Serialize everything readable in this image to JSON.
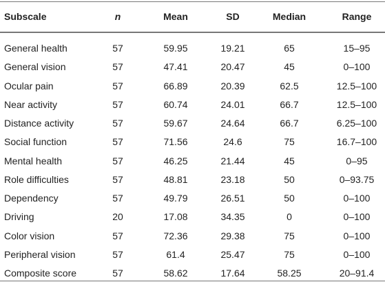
{
  "table": {
    "header": [
      "Subscale",
      "n",
      "Mean",
      "SD",
      "Median",
      "Range"
    ],
    "rows": [
      [
        "General health",
        57,
        59.95,
        19.21,
        65,
        "15–95"
      ],
      [
        "General vision",
        57,
        47.41,
        20.47,
        45,
        "0–100"
      ],
      [
        "Ocular pain",
        57,
        66.89,
        20.39,
        62.5,
        "12.5–100"
      ],
      [
        "Near activity",
        57,
        60.74,
        24.01,
        66.7,
        "12.5–100"
      ],
      [
        "Distance activity",
        57,
        59.67,
        24.64,
        66.7,
        "6.25–100"
      ],
      [
        "Social function",
        57,
        71.56,
        24.6,
        75,
        "16.7–100"
      ],
      [
        "Mental health",
        57,
        46.25,
        21.44,
        45,
        "0–95"
      ],
      [
        "Role difficulties",
        57,
        48.81,
        23.18,
        50,
        "0–93.75"
      ],
      [
        "Dependency",
        57,
        49.79,
        26.51,
        50,
        "0–100"
      ],
      [
        "Driving",
        20,
        17.08,
        34.35,
        0,
        "0–100"
      ],
      [
        "Color vision",
        57,
        72.36,
        29.38,
        75,
        "0–100"
      ],
      [
        "Peripheral vision",
        57,
        61.4,
        25.47,
        75,
        "0–100"
      ],
      [
        "Composite score",
        57,
        58.62,
        17.64,
        58.25,
        "20–91.4"
      ]
    ]
  }
}
